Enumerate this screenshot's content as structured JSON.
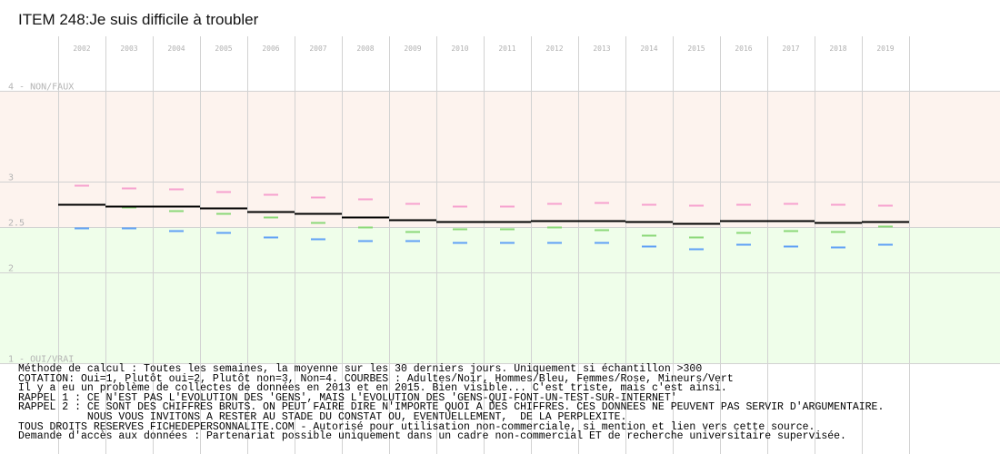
{
  "title": "ITEM 248:Je suis difficile à troubler",
  "chart_data": {
    "type": "line",
    "title": "ITEM 248:Je suis difficile à troubler",
    "categories": [
      "2002",
      "2003",
      "2004",
      "2005",
      "2006",
      "2007",
      "2008",
      "2009",
      "2010",
      "2011",
      "2012",
      "2013",
      "2014",
      "2015",
      "2016",
      "2017",
      "2018",
      "2019"
    ],
    "y_ticks": [
      {
        "value": 4,
        "label": "4 - NON/FAUX"
      },
      {
        "value": 3,
        "label": "3"
      },
      {
        "value": 2.5,
        "label": "2.5"
      },
      {
        "value": 2,
        "label": "2"
      },
      {
        "value": 1,
        "label": "1 - OUI/VRAI"
      }
    ],
    "ylim": [
      1,
      4
    ],
    "grid": true,
    "zones": [
      {
        "from": 2.5,
        "to": 4,
        "color": "#fdf3ee"
      },
      {
        "from": 1,
        "to": 2.5,
        "color": "#effeea"
      }
    ],
    "series": [
      {
        "name": "Adultes",
        "color": "#000000",
        "values": [
          2.75,
          2.73,
          2.73,
          2.71,
          2.67,
          2.65,
          2.61,
          2.58,
          2.56,
          2.56,
          2.57,
          2.57,
          2.56,
          2.54,
          2.57,
          2.57,
          2.55,
          2.56
        ]
      },
      {
        "name": "Femmes",
        "color": "#f6a1cf",
        "values": [
          2.96,
          2.93,
          2.92,
          2.89,
          2.86,
          2.83,
          2.81,
          2.76,
          2.73,
          2.73,
          2.76,
          2.77,
          2.75,
          2.74,
          2.75,
          2.76,
          2.75,
          2.74
        ]
      },
      {
        "name": "Hommes",
        "color": "#5fa0f5",
        "values": [
          2.49,
          2.49,
          2.46,
          2.44,
          2.39,
          2.37,
          2.35,
          2.35,
          2.33,
          2.33,
          2.33,
          2.33,
          2.29,
          2.26,
          2.31,
          2.29,
          2.28,
          2.31
        ]
      },
      {
        "name": "Mineurs",
        "color": "#8bd878",
        "values": [
          2.75,
          2.72,
          2.68,
          2.65,
          2.61,
          2.55,
          2.5,
          2.45,
          2.48,
          2.48,
          2.5,
          2.47,
          2.41,
          2.39,
          2.44,
          2.46,
          2.45,
          2.51
        ]
      }
    ]
  },
  "notes": [
    "Méthode de calcul : Toutes les semaines, la moyenne sur les 30 derniers jours. Uniquement si échantillon >300",
    "COTATION: Oui=1, Plutôt oui=2, Plutôt non=3, Non=4. COURBES : Adultes/Noir, Hommes/Bleu, Femmes/Rose, Mineurs/Vert",
    "Il y a eu un problème de collectes de données en 2013 et en 2015. Bien visible... C'est triste, mais c'est ainsi.",
    "RAPPEL 1 : CE N'EST PAS L'EVOLUTION DES 'GENS', MAIS L'EVOLUTION DES 'GENS-QUI-FONT-UN-TEST-SUR-INTERNET'",
    "RAPPEL 2 : CE SONT DES CHIFFRES BRUTS. ON PEUT FAIRE DIRE N'IMPORTE QUOI A DES CHIFFRES. CES DONNEES NE PEUVENT PAS SERVIR D'ARGUMENTAIRE.",
    "           NOUS VOUS INVITONS A RESTER AU STADE DU CONSTAT OU, EVENTUELLEMENT,  DE LA PERPLEXITE.",
    "TOUS DROITS RESERVES FICHEDEPERSONNALITE.COM - Autorisé pour utilisation non-commerciale, si mention et lien vers cette source.",
    "Demande d'accès aux données : Partenariat possible uniquement dans un cadre non-commercial ET de recherche universitaire supervisée."
  ]
}
